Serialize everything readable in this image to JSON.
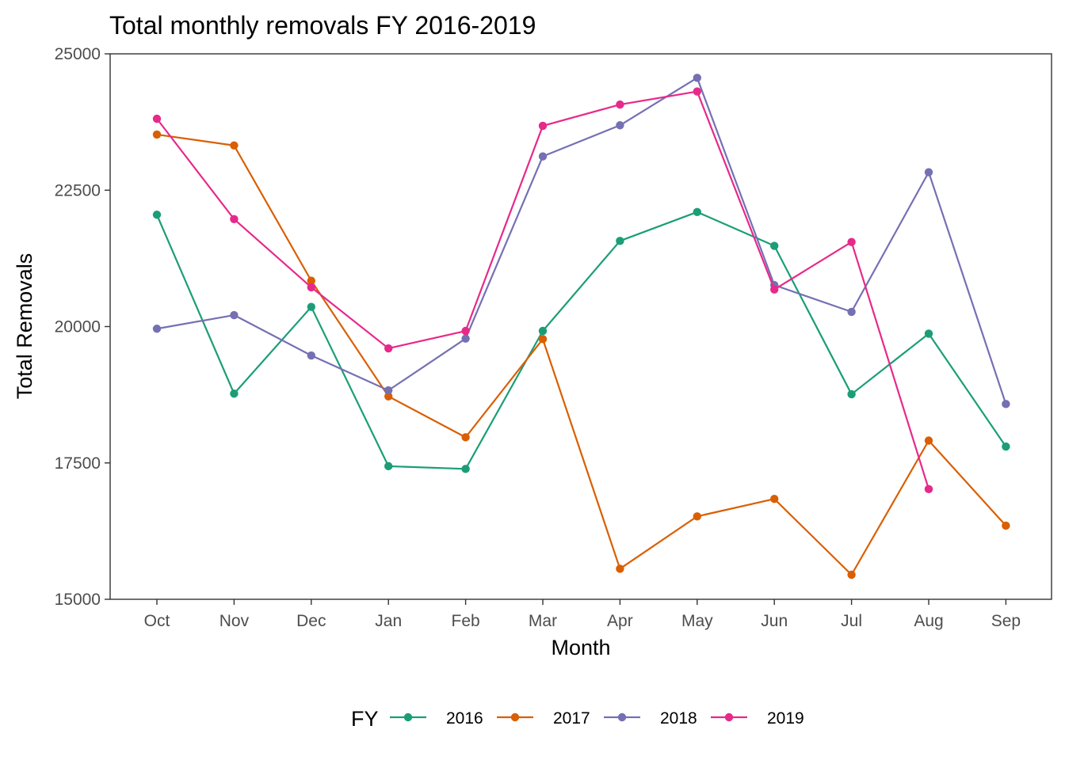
{
  "chart_data": {
    "type": "line",
    "title": "Total monthly removals FY 2016-2019",
    "xlabel": "Month",
    "ylabel": "Total Removals",
    "categories": [
      "Oct",
      "Nov",
      "Dec",
      "Jan",
      "Feb",
      "Mar",
      "Apr",
      "May",
      "Jun",
      "Jul",
      "Aug",
      "Sep"
    ],
    "ylim": [
      15000,
      25000
    ],
    "yticks": [
      15000,
      17500,
      20000,
      22500,
      25000
    ],
    "grid": false,
    "legend": {
      "title": "FY",
      "placement": "bottom"
    },
    "series": [
      {
        "name": "2016",
        "color": "#1b9e77",
        "values": [
          22050,
          18770,
          20360,
          17440,
          17390,
          19920,
          21570,
          22100,
          21480,
          18760,
          19870,
          17800
        ]
      },
      {
        "name": "2017",
        "color": "#d95f02",
        "values": [
          23520,
          23320,
          20840,
          18720,
          17970,
          19770,
          15560,
          16520,
          16840,
          15450,
          17910,
          16350
        ]
      },
      {
        "name": "2018",
        "color": "#7570b3",
        "values": [
          19960,
          20210,
          19470,
          18830,
          19780,
          23120,
          23690,
          24560,
          20760,
          20270,
          22830,
          18580
        ]
      },
      {
        "name": "2019",
        "color": "#e7298a",
        "values": [
          23810,
          21970,
          20720,
          19600,
          19920,
          23680,
          24070,
          24310,
          20680,
          21550,
          17020,
          null
        ]
      }
    ]
  }
}
